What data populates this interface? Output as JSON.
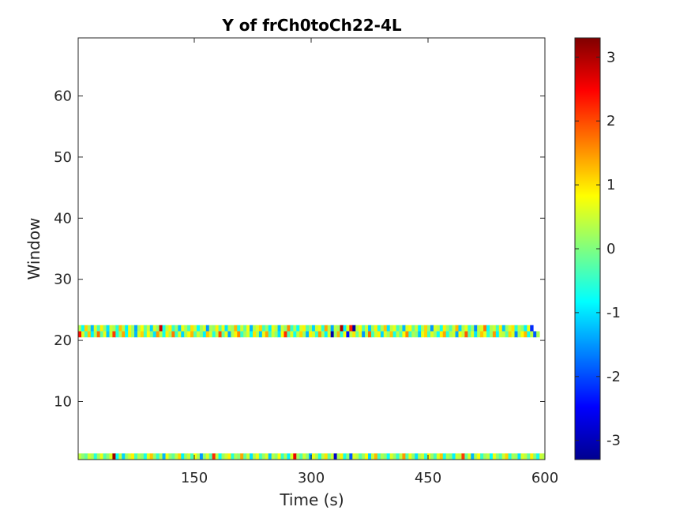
{
  "chart_data": {
    "type": "heatmap",
    "title": "Y of frCh0toCh22-4L",
    "xlabel": "Time (s)",
    "ylabel": "Window",
    "xlim": [
      1,
      600
    ],
    "ylim": [
      0.5,
      69.5
    ],
    "xticks": [
      150,
      300,
      450,
      600
    ],
    "yticks": [
      10,
      20,
      30,
      40,
      50,
      60
    ],
    "colormap": "jet",
    "clim": [
      -3.3,
      3.3
    ],
    "colorbar_ticks": [
      -3,
      -2,
      -1,
      0,
      1,
      2,
      3
    ],
    "cell_width_s": 4,
    "rows": [
      {
        "window": 1,
        "values": [
          0.4,
          0.1,
          -0.2,
          0.5,
          0.3,
          -0.6,
          0.2,
          0.7,
          -0.3,
          0.1,
          0.6,
          3.1,
          -0.8,
          0.4,
          -1.1,
          0.2,
          0.5,
          0.9,
          -0.4,
          0.3,
          0.1,
          -0.7,
          0.6,
          1.2,
          0.2,
          -0.5,
          0.3,
          -1.3,
          0.7,
          0.1,
          -0.2,
          0.4,
          1.1,
          -0.9,
          0.2,
          0.5,
          -0.4,
          0.8,
          0.3,
          -1.5,
          0.1,
          0.6,
          -0.3,
          2.2,
          0.4,
          -0.8,
          0.2,
          0.5,
          0.9,
          -0.6,
          0.3,
          0.1,
          1.4,
          -0.2,
          0.5,
          -1.0,
          0.3,
          0.7,
          -0.4,
          0.2,
          0.6,
          -1.2,
          0.4,
          0.1,
          0.8,
          -0.5,
          0.3,
          -0.9,
          0.6,
          2.6,
          0.2,
          -0.3,
          0.5,
          0.1,
          -1.4,
          0.7,
          0.3,
          -0.6,
          0.4,
          1.0,
          -0.2,
          0.5,
          -2.8,
          0.3,
          0.9,
          -0.7,
          0.1,
          -1.9,
          0.6,
          0.4,
          -0.3,
          0.2,
          0.8,
          -1.1,
          0.5,
          1.3,
          -0.4,
          0.3,
          0.1,
          -0.8,
          0.6,
          0.2,
          -0.5,
          0.4,
          1.5,
          -0.3,
          0.7,
          0.1,
          -1.0,
          0.3,
          0.5,
          -0.6,
          0.9,
          0.2,
          -0.4,
          0.6,
          1.2,
          -0.7,
          0.3,
          0.1,
          -0.9,
          0.5,
          0.4,
          2.1,
          -0.2,
          0.6,
          -1.3,
          0.3,
          0.8,
          -0.5,
          0.2,
          0.4,
          -0.8,
          0.7,
          0.1,
          -0.3,
          0.5,
          1.1,
          -0.6,
          0.3,
          0.2,
          -1.0,
          0.6,
          0.4,
          -0.2,
          0.9,
          0.1,
          -0.7,
          0.5,
          0.3
        ]
      },
      {
        "window": 21,
        "values": [
          2.4,
          0.6,
          -0.4,
          1.2,
          -0.9,
          0.3,
          1.8,
          -0.2,
          0.7,
          -1.2,
          0.5,
          2.1,
          -0.6,
          0.3,
          1.4,
          -0.8,
          0.9,
          0.2,
          -1.3,
          0.6,
          1.1,
          -0.4,
          0.8,
          0.1,
          -1.0,
          1.5,
          0.4,
          -0.7,
          0.9,
          0.2,
          1.7,
          -0.5,
          0.6,
          -1.1,
          0.3,
          0.8,
          1.3,
          -0.3,
          0.5,
          0.1,
          -0.9,
          1.2,
          0.6,
          -0.6,
          0.4,
          2.0,
          -0.2,
          0.7,
          -1.4,
          0.3,
          0.9,
          1.6,
          -0.5,
          0.2,
          0.6,
          -0.8,
          1.0,
          0.3,
          -1.2,
          0.7,
          1.4,
          -0.4,
          0.5,
          0.1,
          -1.0,
          0.8,
          2.2,
          -0.3,
          0.6,
          -0.7,
          0.4,
          1.1,
          0.2,
          -1.3,
          0.9,
          0.5,
          -0.5,
          1.5,
          0.3,
          -0.9,
          0.6,
          -3.0,
          0.2,
          1.3,
          -0.6,
          0.8,
          -2.4,
          0.4,
          1.0,
          -0.2,
          0.7,
          -1.5,
          0.3,
          1.8,
          -0.4,
          0.5,
          0.9,
          -1.1,
          0.6,
          0.2,
          1.2,
          -0.7,
          0.4,
          -0.3,
          0.8,
          1.6,
          -0.5,
          0.3,
          0.1,
          -1.2,
          0.7,
          1.1,
          -0.4,
          0.6,
          0.2,
          -0.8,
          0.9,
          1.4,
          -0.6,
          0.3,
          0.5,
          -1.4,
          0.8,
          0.4,
          1.9,
          -0.2,
          0.6,
          -1.0,
          0.3,
          1.2,
          0.7,
          -0.5,
          0.2,
          1.5,
          -0.9,
          0.5,
          0.4,
          -0.3,
          1.1,
          0.6,
          -1.6,
          0.2,
          0.8,
          1.3,
          -0.7,
          0.4,
          -1.9,
          0.3
        ]
      },
      {
        "window": 22,
        "values": [
          0.3,
          -0.8,
          1.1,
          0.2,
          -1.3,
          0.6,
          -0.4,
          0.9,
          0.1,
          -1.0,
          0.5,
          0.3,
          -0.6,
          1.2,
          0.4,
          -0.9,
          0.7,
          0.2,
          -1.4,
          0.3,
          0.8,
          -0.2,
          0.5,
          -1.1,
          0.6,
          0.1,
          2.8,
          -0.7,
          0.4,
          0.9,
          -0.5,
          0.2,
          -1.2,
          0.7,
          0.3,
          -0.4,
          1.0,
          0.5,
          -0.8,
          0.2,
          0.6,
          -1.5,
          0.3,
          0.1,
          0.9,
          -0.3,
          0.7,
          -1.0,
          0.4,
          0.2,
          1.3,
          -0.6,
          0.5,
          -0.2,
          0.8,
          -1.3,
          0.3,
          0.6,
          1.1,
          -0.4,
          0.2,
          -0.9,
          0.7,
          0.4,
          -1.2,
          0.5,
          0.1,
          1.6,
          -0.5,
          0.3,
          -0.8,
          0.6,
          0.9,
          -0.3,
          0.2,
          -1.1,
          0.5,
          0.7,
          -0.6,
          1.4,
          0.3,
          -1.4,
          0.4,
          0.2,
          3.0,
          -0.9,
          0.6,
          2.3,
          -3.1,
          0.4,
          0.8,
          -0.3,
          0.5,
          -1.2,
          0.2,
          0.9,
          -0.6,
          0.3,
          1.2,
          -1.0,
          0.4,
          0.7,
          -0.4,
          0.2,
          -1.3,
          0.6,
          0.8,
          -0.2,
          0.5,
          -0.9,
          0.3,
          1.1,
          0.1,
          -1.5,
          0.6,
          0.4,
          -0.7,
          0.9,
          0.2,
          -0.3,
          0.5,
          1.3,
          -1.1,
          0.3,
          0.7,
          -0.5,
          0.2,
          -1.6,
          0.4,
          0.6,
          1.7,
          -0.8,
          0.3,
          0.5,
          -0.4,
          0.9,
          -1.2,
          0.2,
          0.6,
          1.0,
          -0.6,
          0.4,
          0.1,
          -0.9,
          0.7,
          -2.2
        ]
      }
    ]
  }
}
